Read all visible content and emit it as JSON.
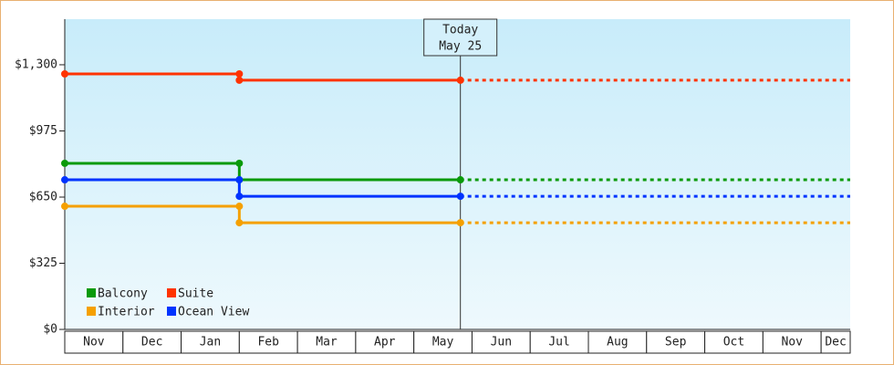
{
  "chart_data": {
    "type": "step-line",
    "categories": [
      "Nov",
      "Dec",
      "Jan",
      "Feb",
      "Mar",
      "Apr",
      "May",
      "Jun",
      "Jul",
      "Aug",
      "Sep",
      "Oct",
      "Nov",
      "Dec"
    ],
    "series": [
      {
        "name": "Balcony",
        "color": "#0a9a0a",
        "values": [
          816,
          816,
          816,
          735,
          735,
          735,
          735,
          null,
          null,
          null,
          null,
          null,
          null,
          null
        ]
      },
      {
        "name": "Suite",
        "color": "#ff3300",
        "values": [
          1255,
          1255,
          1255,
          1224,
          1224,
          1224,
          1224,
          null,
          null,
          null,
          null,
          null,
          null,
          null
        ]
      },
      {
        "name": "Interior",
        "color": "#f5a000",
        "values": [
          605,
          605,
          605,
          524,
          524,
          524,
          524,
          null,
          null,
          null,
          null,
          null,
          null,
          null
        ]
      },
      {
        "name": "Ocean View",
        "color": "#0033ff",
        "values": [
          735,
          735,
          735,
          654,
          654,
          654,
          654,
          null,
          null,
          null,
          null,
          null,
          null,
          null
        ]
      }
    ],
    "ylim": [
      0,
      1524
    ],
    "yticks": [
      {
        "value": 0,
        "label": "$0"
      },
      {
        "value": 325,
        "label": "$325"
      },
      {
        "value": 650,
        "label": "$650"
      },
      {
        "value": 975,
        "label": "$975"
      },
      {
        "value": 1300,
        "label": "$1,300"
      }
    ],
    "annotation": {
      "title": "Today",
      "date": "May 25"
    },
    "legend": "lower left"
  }
}
